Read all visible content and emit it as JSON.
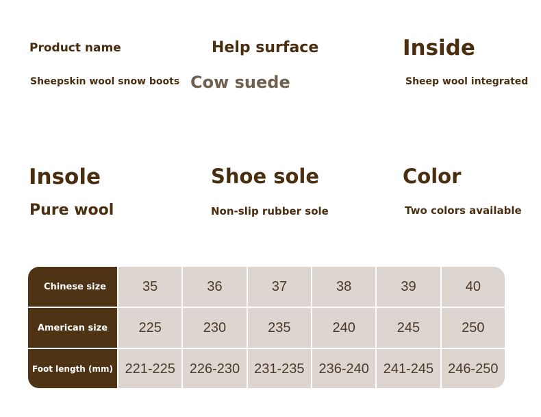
{
  "specs": {
    "product_name": {
      "label": "Product name",
      "value": "Sheepskin wool snow boots"
    },
    "help_surface": {
      "label": "Help surface",
      "value": "Cow suede"
    },
    "inside": {
      "label": "Inside",
      "value": "Sheep wool integrated"
    },
    "insole": {
      "label": "Insole",
      "value": "Pure wool"
    },
    "shoe_sole": {
      "label": "Shoe sole",
      "value": "Non-slip rubber sole"
    },
    "color": {
      "label": "Color",
      "value": "Two colors available"
    }
  },
  "size_table": {
    "rows": [
      {
        "header": "Chinese size",
        "cells": [
          "35",
          "36",
          "37",
          "38",
          "39",
          "40"
        ]
      },
      {
        "header": "American size",
        "cells": [
          "225",
          "230",
          "235",
          "240",
          "245",
          "250"
        ]
      },
      {
        "header": "Foot length (mm)",
        "cells": [
          "221-225",
          "226-230",
          "231-235",
          "236-240",
          "241-245",
          "246-250"
        ]
      }
    ]
  },
  "colors": {
    "text": "#4a2e10",
    "accent_muted": "#6e5f4e",
    "header_bg": "#4e3414",
    "cell_bg": "#ddd5cf"
  }
}
